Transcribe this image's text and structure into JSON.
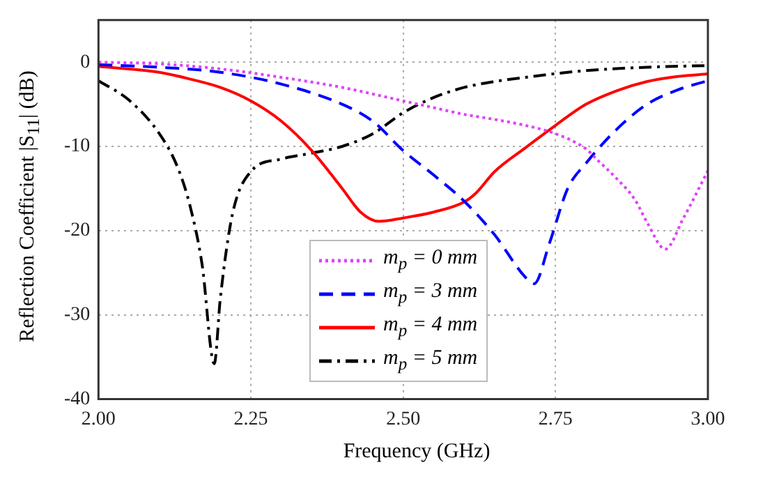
{
  "chart_data": {
    "type": "line",
    "xlabel": "Frequency (GHz)",
    "ylabel": "Reflection Coefficient |S$_{11}$| (dB)",
    "xlim": [
      2,
      3
    ],
    "xticks": [
      {
        "value": 2,
        "label": "2.00"
      },
      {
        "value": 2.25,
        "label": "2.25"
      },
      {
        "value": 2.5,
        "label": "2.50"
      },
      {
        "value": 2.75,
        "label": "2.75"
      },
      {
        "value": 3,
        "label": "3.00"
      }
    ],
    "ylim": [
      -40,
      5
    ],
    "yticks": [
      0,
      -10,
      -20,
      -30,
      -40
    ],
    "grid": true,
    "legend": "bottom",
    "marker": "none",
    "series": [
      {
        "name": "m$_{p}$ = 0 mm",
        "color": "#e040fb",
        "line_style": "dotted",
        "x": [
          2,
          2.1,
          2.2,
          2.3,
          2.4,
          2.5,
          2.55,
          2.6,
          2.65,
          2.7,
          2.75,
          2.8,
          2.82,
          2.85,
          2.88,
          2.9,
          2.93,
          2.96,
          3
        ],
        "values": [
          0,
          -0.2,
          -0.8,
          -1.8,
          -3,
          -4.6,
          -5.4,
          -6.2,
          -6.8,
          -7.5,
          -8.5,
          -10.3,
          -11.7,
          -13.8,
          -16.3,
          -19,
          -22.2,
          -18.5,
          -12.9
        ]
      },
      {
        "name": "m$_{p}$ = 3 mm",
        "color": "#0000ff",
        "line_style": "dashed",
        "x": [
          2,
          2.1,
          2.2,
          2.3,
          2.4,
          2.45,
          2.5,
          2.55,
          2.6,
          2.65,
          2.7,
          2.715,
          2.74,
          2.77,
          2.8,
          2.85,
          2.9,
          2.95,
          3
        ],
        "values": [
          -0.3,
          -0.6,
          -1.2,
          -2.6,
          -5,
          -7,
          -10.5,
          -13.4,
          -16.5,
          -20.5,
          -25.5,
          -26.3,
          -21.5,
          -15,
          -12,
          -8,
          -5,
          -3.3,
          -2.2
        ]
      },
      {
        "name": "m$_{p}$ = 4 mm",
        "color": "#ff0000",
        "line_style": "solid",
        "x": [
          2,
          2.1,
          2.15,
          2.2,
          2.25,
          2.3,
          2.35,
          2.4,
          2.43,
          2.46,
          2.5,
          2.55,
          2.6,
          2.62,
          2.65,
          2.7,
          2.75,
          2.8,
          2.85,
          2.9,
          2.95,
          3
        ],
        "values": [
          -0.5,
          -1.2,
          -2,
          -3,
          -4.6,
          -7,
          -10.5,
          -15,
          -17.8,
          -18.9,
          -18.5,
          -17.8,
          -16.6,
          -15.5,
          -13,
          -10.2,
          -7.5,
          -5,
          -3.4,
          -2.3,
          -1.7,
          -1.4
        ]
      },
      {
        "name": "m$_{p}$ = 5 mm",
        "color": "#000000",
        "line_style": "dashdot",
        "x": [
          2,
          2.05,
          2.1,
          2.13,
          2.15,
          2.17,
          2.19,
          2.2,
          2.22,
          2.25,
          2.3,
          2.35,
          2.4,
          2.45,
          2.5,
          2.55,
          2.6,
          2.65,
          2.7,
          2.8,
          2.9,
          3
        ],
        "values": [
          -2.2,
          -4.5,
          -8.5,
          -12.5,
          -17,
          -24,
          -35.8,
          -28,
          -18,
          -13,
          -11.5,
          -10.8,
          -10,
          -8.5,
          -6,
          -4.2,
          -3,
          -2.3,
          -1.8,
          -1,
          -0.6,
          -0.4
        ]
      }
    ]
  }
}
